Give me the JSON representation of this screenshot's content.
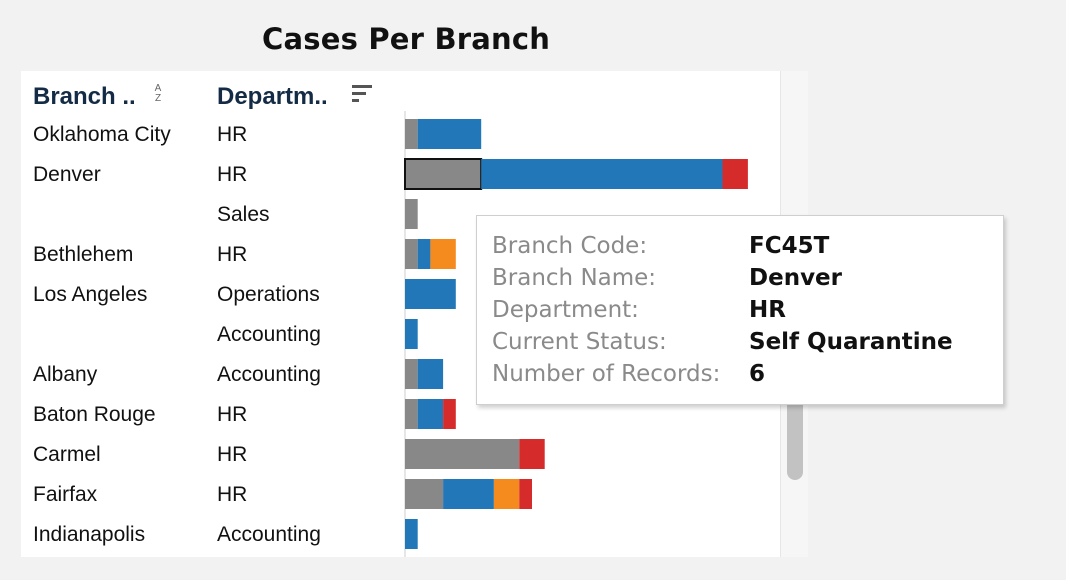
{
  "chart_data": {
    "type": "bar",
    "orientation": "horizontal",
    "stacked": true,
    "title": "Cases Per Branch",
    "columns": {
      "branch": "Branch ..",
      "department": "Departm.."
    },
    "rows": [
      {
        "branch": "Oklahoma City",
        "department": "HR"
      },
      {
        "branch": "Denver",
        "department": "HR"
      },
      {
        "branch": "",
        "department": "Sales"
      },
      {
        "branch": "Bethlehem",
        "department": "HR"
      },
      {
        "branch": "Los Angeles",
        "department": "Operations"
      },
      {
        "branch": "",
        "department": "Accounting"
      },
      {
        "branch": "Albany",
        "department": "Accounting"
      },
      {
        "branch": "Baton Rouge",
        "department": "HR"
      },
      {
        "branch": "Carmel",
        "department": "HR"
      },
      {
        "branch": "Fairfax",
        "department": "HR"
      },
      {
        "branch": "Indianapolis",
        "department": "Accounting"
      }
    ],
    "series": [
      {
        "color": "#888888",
        "values": [
          0.5,
          3,
          0.5,
          0.5,
          0,
          0,
          0.5,
          0.5,
          4.5,
          1.5,
          0
        ]
      },
      {
        "color": "#2277b8",
        "values": [
          2.5,
          9.5,
          0,
          0.5,
          2,
          0.5,
          1,
          1,
          0,
          2,
          0.5
        ]
      },
      {
        "color": "#f58a1f",
        "values": [
          0,
          0,
          0,
          1,
          0,
          0,
          0,
          0,
          0,
          1,
          0
        ]
      },
      {
        "color": "#d62b2b",
        "values": [
          0,
          1,
          0,
          0,
          0,
          0,
          0,
          0.5,
          1,
          0.5,
          0
        ]
      }
    ],
    "xlim": [
      0,
      14
    ],
    "highlight": {
      "row": 1,
      "series": 0
    },
    "grid": false,
    "legend": "none"
  },
  "tooltip": {
    "rows": [
      {
        "label": "Branch Code:",
        "value": "FC45T"
      },
      {
        "label": "Branch Name:",
        "value": "Denver"
      },
      {
        "label": "Department:",
        "value": "HR"
      },
      {
        "label": "Current Status:",
        "value": "Self Quarantine"
      },
      {
        "label": "Number of Records:",
        "value": "6"
      }
    ]
  },
  "icons": {
    "branch_sort": "sort-alpha-icon",
    "department_sort": "sort-descending-icon"
  },
  "sort_az": {
    "top": "A",
    "bottom": "Z"
  }
}
